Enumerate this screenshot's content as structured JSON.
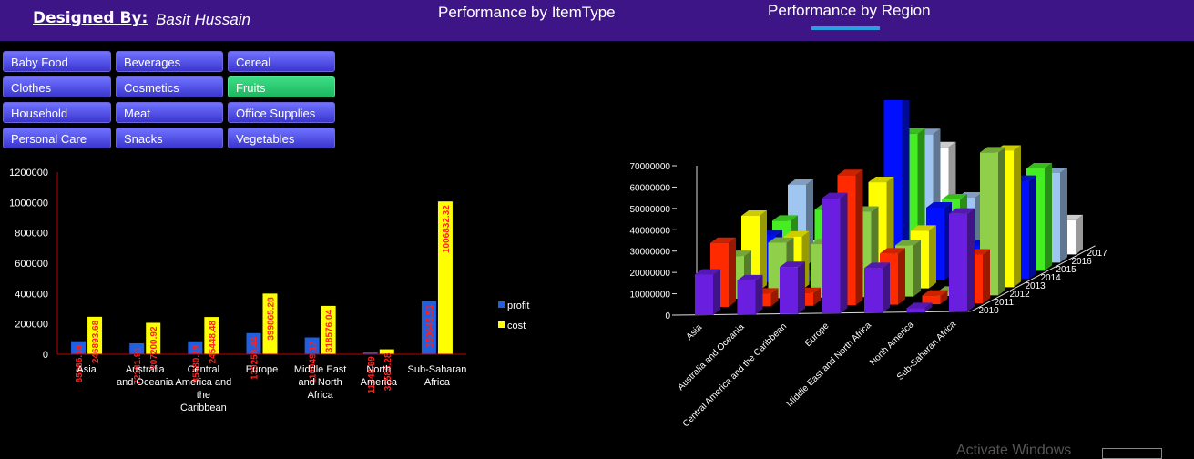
{
  "header": {
    "designed_label": "Designed By:",
    "author": "Basit Hussain",
    "tabs": [
      {
        "label": "Performance by ItemType",
        "active": false
      },
      {
        "label": "Performance by Region",
        "active": true
      }
    ]
  },
  "slicer": {
    "items": [
      {
        "label": "Baby Food",
        "selected": false
      },
      {
        "label": "Beverages",
        "selected": false
      },
      {
        "label": "Cereal",
        "selected": false
      },
      {
        "label": "Clothes",
        "selected": false
      },
      {
        "label": "Cosmetics",
        "selected": false
      },
      {
        "label": "Fruits",
        "selected": true
      },
      {
        "label": "Household",
        "selected": false
      },
      {
        "label": "Meat",
        "selected": false
      },
      {
        "label": "Office Supplies",
        "selected": false
      },
      {
        "label": "Personal Care",
        "selected": false
      },
      {
        "label": "Snacks",
        "selected": false
      },
      {
        "label": "Vegetables",
        "selected": false
      }
    ]
  },
  "watermark": "Activate Windows",
  "chart_data": [
    {
      "type": "bar",
      "categories": [
        "Asia",
        "Australia and Oceania",
        "Central America and the Caribbean",
        "Europe",
        "Middle East and North Africa",
        "North America",
        "Sub-Saharan Africa"
      ],
      "category_lines": [
        [
          "Asia"
        ],
        [
          "Australia",
          "and Oceania"
        ],
        [
          "Central",
          "America and",
          "the",
          "Caribbean"
        ],
        [
          "Europe"
        ],
        [
          "Middle East",
          "and North",
          "Africa"
        ],
        [
          "North",
          "America"
        ],
        [
          "Sub-Saharan",
          "Africa"
        ]
      ],
      "series": [
        {
          "name": "profit",
          "color": "#1f5fe0",
          "values": [
            85986.39,
            72181.91,
            85480.29,
            139259.44,
            110949.17,
            11348.69,
            350645.51
          ],
          "labels": [
            "85986.39",
            "72181.91",
            "85480.29",
            "139259.44",
            "110949.17",
            "11348.69",
            "350645.51"
          ]
        },
        {
          "name": "cost",
          "color": "#ffff00",
          "values": [
            246893.68,
            207200.92,
            245448.48,
            399865.28,
            318576.04,
            32586.28,
            1006832.32
          ],
          "labels": [
            "246893.68",
            "207200.92",
            "245448.48",
            "399865.28",
            "318576.04",
            "32586.28",
            "1006832.32"
          ]
        }
      ],
      "yticks": [
        "0",
        "200000",
        "400000",
        "600000",
        "800000",
        "1000000",
        "1200000"
      ],
      "ylim": [
        0,
        1200000
      ],
      "label_color": "#ff2020",
      "legend_position": "right"
    },
    {
      "type": "bar",
      "subtype": "3d-column",
      "categories": [
        "Asia",
        "Australia and Oceania",
        "Central America and the Caribbean",
        "Europe",
        "Middle East and North Africa",
        "North America",
        "Sub-Saharan Africa"
      ],
      "depth_categories": [
        "2010",
        "2011",
        "2012",
        "2013",
        "2014",
        "2015",
        "2016",
        "2017"
      ],
      "depth_colors": [
        "#6a1fe0",
        "#ff2a00",
        "#8fcf4a",
        "#ffff00",
        "#0010ff",
        "#44ee22",
        "#9fc6f0",
        "#ffffff"
      ],
      "values": [
        [
          19000000,
          30000000,
          20000000,
          35000000,
          22000000,
          25000000,
          38000000,
          6000000
        ],
        [
          16000000,
          6000000,
          26000000,
          25000000,
          3000000,
          30000000,
          6000000,
          2000000
        ],
        [
          22000000,
          6000000,
          25000000,
          21000000,
          30000000,
          12000000,
          1000000,
          6000000
        ],
        [
          54000000,
          61000000,
          40000000,
          50000000,
          86000000,
          65000000,
          61000000,
          51000000
        ],
        [
          21000000,
          24000000,
          24000000,
          27000000,
          34000000,
          34000000,
          31000000,
          4000000
        ],
        [
          2000000,
          4000000,
          2000000,
          2000000,
          16000000,
          2000000,
          10000000,
          1000000
        ],
        [
          46000000,
          23000000,
          67000000,
          64000000,
          46000000,
          48000000,
          42000000,
          16000000
        ]
      ],
      "yticks": [
        "0",
        "10000000",
        "20000000",
        "30000000",
        "40000000",
        "50000000",
        "60000000",
        "70000000"
      ],
      "ylim": [
        0,
        70000000
      ]
    }
  ]
}
